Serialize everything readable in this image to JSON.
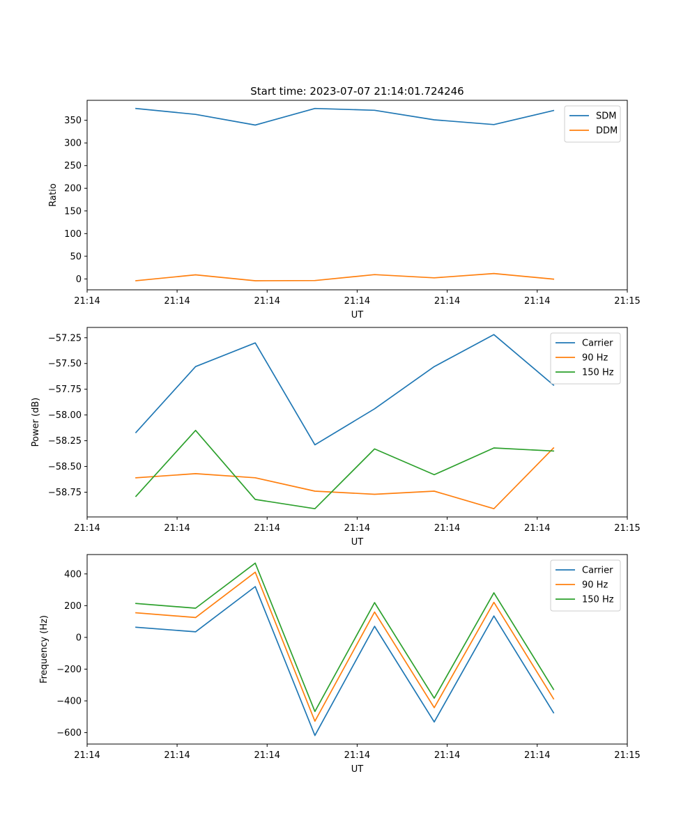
{
  "figure": {
    "title": "Start time: 2023-07-07 21:14:01.724246"
  },
  "colors": {
    "blue": "#1f77b4",
    "orange": "#ff7f0e",
    "green": "#2ca02c"
  },
  "chart_data": [
    {
      "type": "line",
      "title": "Start time: 2023-07-07 21:14:01.724246",
      "xlabel": "UT",
      "ylabel": "Ratio",
      "x": [
        1,
        2,
        3,
        4,
        5,
        6,
        7,
        8
      ],
      "xlim": [
        0.182,
        9.236
      ],
      "x_ticks": [
        0.182,
        1.69,
        3.199,
        4.708,
        6.217,
        7.726,
        9.236
      ],
      "x_tick_labels": [
        "21:14",
        "21:14",
        "21:14",
        "21:14",
        "21:14",
        "21:14",
        "21:15"
      ],
      "ylim": [
        -24,
        394
      ],
      "y_ticks": [
        0,
        50,
        100,
        150,
        200,
        250,
        300,
        350
      ],
      "y_tick_labels": [
        "0",
        "50",
        "100",
        "150",
        "200",
        "250",
        "300",
        "350"
      ],
      "legend": "top-right",
      "series": [
        {
          "name": "SDM",
          "color": "#1f77b4",
          "values": [
            376,
            363,
            339.5,
            376,
            372,
            351,
            340.5,
            371.5
          ]
        },
        {
          "name": "DDM",
          "color": "#ff7f0e",
          "values": [
            -4,
            9,
            -4,
            -3.5,
            9.5,
            2.5,
            12,
            -0.5
          ]
        }
      ]
    },
    {
      "type": "line",
      "xlabel": "UT",
      "ylabel": "Power (dB)",
      "x": [
        1,
        2,
        3,
        4,
        5,
        6,
        7,
        8
      ],
      "xlim": [
        0.182,
        9.236
      ],
      "x_ticks": [
        0.182,
        1.69,
        3.199,
        4.708,
        6.217,
        7.726,
        9.236
      ],
      "x_tick_labels": [
        "21:14",
        "21:14",
        "21:14",
        "21:14",
        "21:14",
        "21:14",
        "21:15"
      ],
      "ylim": [
        -58.99,
        -57.15
      ],
      "y_ticks": [
        -58.75,
        -58.5,
        -58.25,
        -58.0,
        -57.75,
        -57.5,
        -57.25
      ],
      "y_tick_labels": [
        "−58.75",
        "−58.50",
        "−58.25",
        "−58.00",
        "−57.75",
        "−57.50",
        "−57.25"
      ],
      "legend": "top-right",
      "series": [
        {
          "name": "Carrier",
          "color": "#1f77b4",
          "values": [
            -58.17,
            -57.53,
            -57.3,
            -58.29,
            -57.94,
            -57.53,
            -57.22,
            -57.71
          ]
        },
        {
          "name": "90 Hz",
          "color": "#ff7f0e",
          "values": [
            -58.61,
            -58.57,
            -58.61,
            -58.74,
            -58.77,
            -58.74,
            -58.91,
            -58.32
          ]
        },
        {
          "name": "150 Hz",
          "color": "#2ca02c",
          "values": [
            -58.79,
            -58.15,
            -58.82,
            -58.91,
            -58.33,
            -58.58,
            -58.32,
            -58.35
          ]
        }
      ]
    },
    {
      "type": "line",
      "xlabel": "UT",
      "ylabel": "Frequency (Hz)",
      "x": [
        1,
        2,
        3,
        4,
        5,
        6,
        7,
        8
      ],
      "xlim": [
        0.182,
        9.236
      ],
      "x_ticks": [
        0.182,
        1.69,
        3.199,
        4.708,
        6.217,
        7.726,
        9.236
      ],
      "x_tick_labels": [
        "21:14",
        "21:14",
        "21:14",
        "21:14",
        "21:14",
        "21:14",
        "21:15"
      ],
      "ylim": [
        -672,
        522
      ],
      "y_ticks": [
        -600,
        -400,
        -200,
        0,
        200,
        400
      ],
      "y_tick_labels": [
        "−600",
        "−400",
        "−200",
        "0",
        "200",
        "400"
      ],
      "legend": "top-right",
      "series": [
        {
          "name": "Carrier",
          "color": "#1f77b4",
          "values": [
            64,
            35,
            320,
            -618,
            70,
            -533,
            135,
            -475
          ]
        },
        {
          "name": "90 Hz",
          "color": "#ff7f0e",
          "values": [
            155,
            125,
            411,
            -528,
            160,
            -443,
            221,
            -387
          ]
        },
        {
          "name": "150 Hz",
          "color": "#2ca02c",
          "values": [
            214,
            184,
            468,
            -467,
            219,
            -383,
            281,
            -328
          ]
        }
      ]
    }
  ]
}
